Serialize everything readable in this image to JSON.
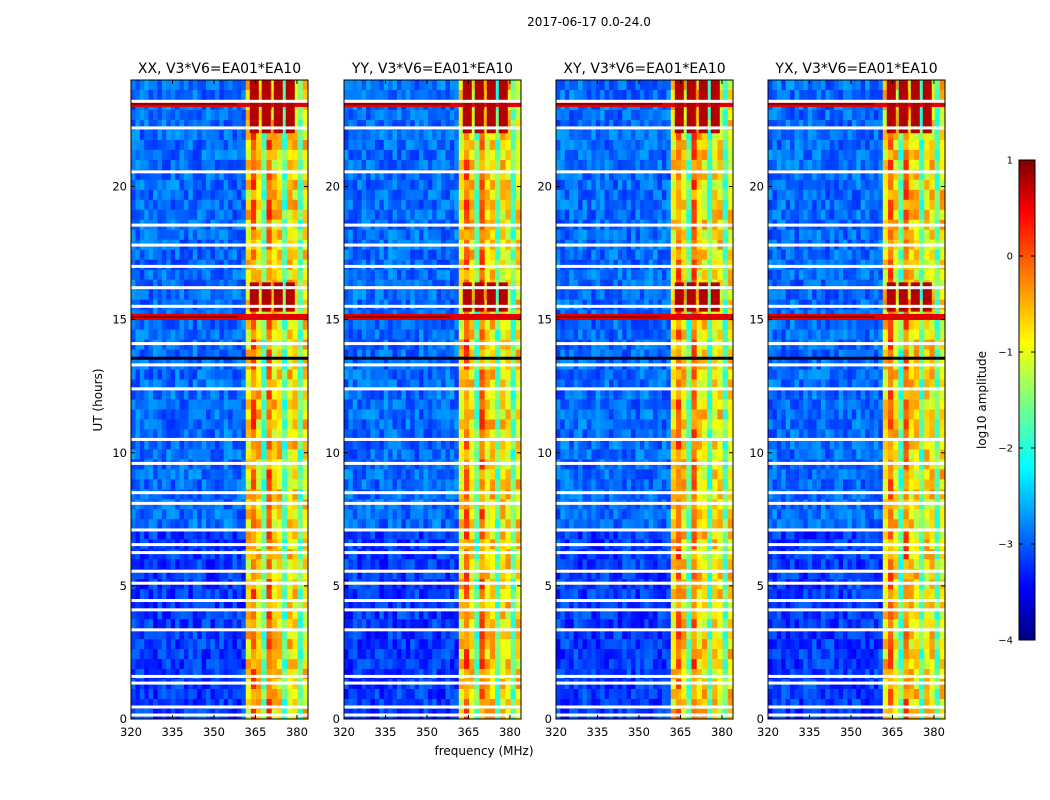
{
  "chart_data": {
    "type": "heatmap",
    "suptitle": "2017-06-17 0.0-24.0",
    "xlabel": "frequency (MHz)",
    "ylabel": "UT (hours)",
    "xlim": [
      320,
      384
    ],
    "ylim": [
      0,
      24
    ],
    "xticks": [
      "320",
      "335",
      "350",
      "365",
      "380"
    ],
    "xtick_values": [
      320,
      335,
      350,
      365,
      380
    ],
    "yticks": [
      "0",
      "5",
      "10",
      "15",
      "20"
    ],
    "ytick_values": [
      0,
      5,
      10,
      15,
      20
    ],
    "panels": [
      {
        "title": "XX, V3*V6=EA01*EA10",
        "band_start_mhz": 361.5
      },
      {
        "title": "YY, V3*V6=EA01*EA10",
        "band_start_mhz": 361.5
      },
      {
        "title": "XY, V3*V6=EA01*EA10",
        "band_start_mhz": 361.5
      },
      {
        "title": "YX, V3*V6=EA01*EA10",
        "band_start_mhz": 361.5
      }
    ],
    "colorbar": {
      "label": "log10 amplitude",
      "range": [
        -4,
        1
      ],
      "ticks": [
        "1",
        "0",
        "−1",
        "−2",
        "−3",
        "−4"
      ],
      "tick_values": [
        1,
        0,
        -1,
        -2,
        -3,
        -4
      ]
    },
    "blank_rows_ut_hours": [
      0.15,
      0.45,
      1.35,
      1.6,
      3.35,
      4.1,
      4.45,
      5.1,
      5.55,
      6.25,
      6.55,
      7.1,
      8.1,
      8.5,
      9.6,
      10.5,
      12.4,
      13.3,
      14.1,
      15.5,
      16.2,
      17.0,
      17.8,
      18.55,
      20.55,
      22.2,
      23.2
    ],
    "dark_rows_ut_hours": [
      13.55
    ],
    "rfi_rows_ut_hours": [
      15.1,
      23.1
    ]
  }
}
